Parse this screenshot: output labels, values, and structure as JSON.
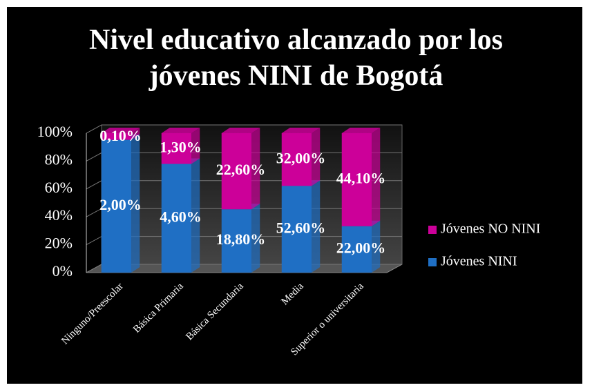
{
  "chart_data": {
    "type": "bar",
    "stacking": "percent",
    "title": "Nivel educativo alcanzado por los jóvenes NINI de Bogotá",
    "categories": [
      "Ninguno/Preescolar",
      "Básica Primaria",
      "Básica Secundaria",
      "Media",
      "Superior o universitaria"
    ],
    "series": [
      {
        "name": "Jóvenes NINI",
        "color": "#1f6fc4",
        "values": [
          2.0,
          4.6,
          18.8,
          52.6,
          22.0
        ],
        "value_labels": [
          "2,00%",
          "4,60%",
          "18,80%",
          "52,60%",
          "22,00%"
        ]
      },
      {
        "name": "Jóvenes NO NINI",
        "color": "#cc0099",
        "values": [
          0.1,
          1.3,
          22.6,
          32.0,
          44.1
        ],
        "value_labels": [
          "0,10%",
          "1,30%",
          "22,60%",
          "32,00%",
          "44,10%"
        ]
      }
    ],
    "ylim": [
      0,
      100
    ],
    "yticks": [
      {
        "value": 0,
        "label": "0%"
      },
      {
        "value": 20,
        "label": "20%"
      },
      {
        "value": 40,
        "label": "40%"
      },
      {
        "value": 60,
        "label": "60%"
      },
      {
        "value": 80,
        "label": "80%"
      },
      {
        "value": 100,
        "label": "100%"
      }
    ],
    "grid": true,
    "legend": "right"
  }
}
